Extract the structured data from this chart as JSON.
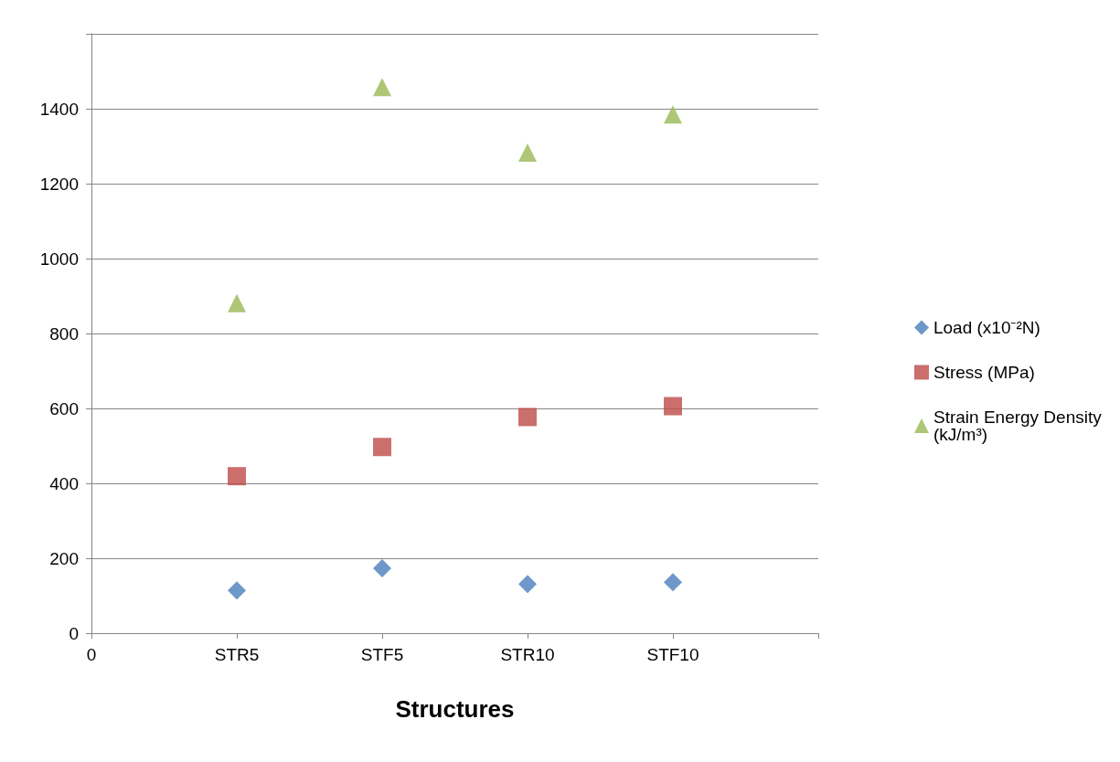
{
  "chart_data": {
    "type": "scatter",
    "xlabel": "Structures",
    "categories": [
      "0",
      "STR5",
      "STF5",
      "STR10",
      "STF10",
      null
    ],
    "ylim": [
      0,
      1600
    ],
    "yticks": [
      0,
      200,
      400,
      600,
      800,
      1000,
      1200,
      1400,
      {
        "value": 1600,
        "label": null
      }
    ],
    "grid": "y",
    "legend": "right",
    "series": [
      {
        "name": "Load (x10⁻²N)",
        "color": "#4a7ebb",
        "marker": "diamond",
        "values": [
          null,
          114,
          173,
          131,
          136,
          null
        ]
      },
      {
        "name": "Stress (MPa)",
        "color": "#be4b48",
        "marker": "square",
        "values": [
          null,
          419,
          497,
          577,
          606,
          null
        ]
      },
      {
        "name": "Strain Energy Density (kJ/m³)",
        "color": "#98b954",
        "marker": "triangle",
        "values": [
          null,
          881,
          1458,
          1283,
          1385,
          null
        ]
      }
    ]
  }
}
